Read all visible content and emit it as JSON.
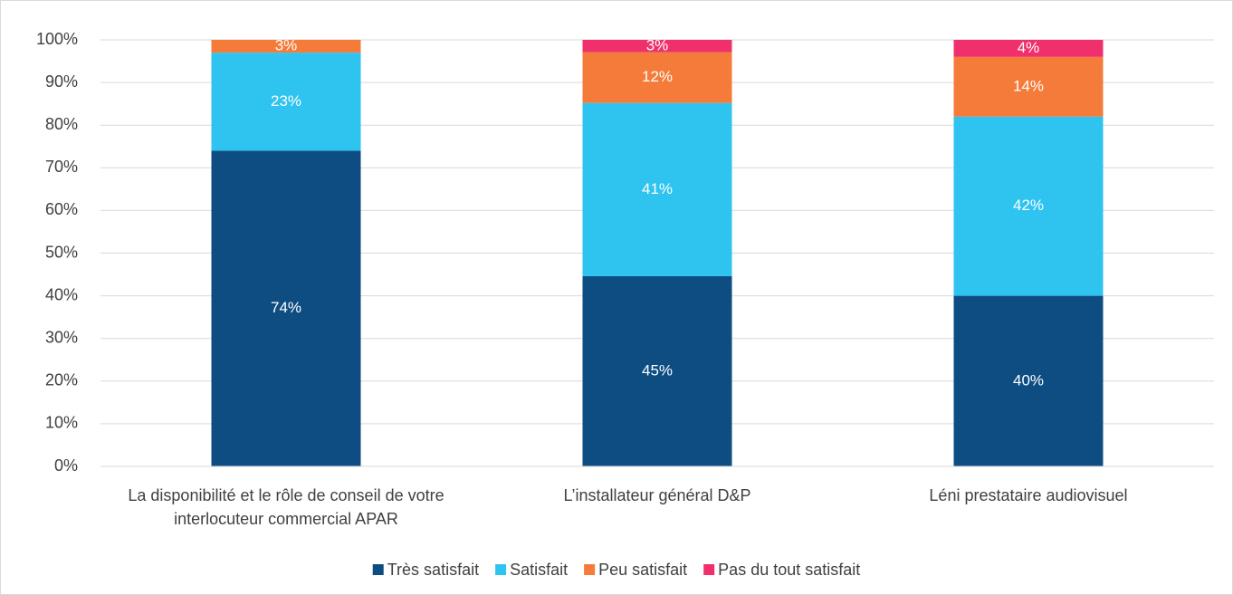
{
  "chart_data": {
    "type": "stacked_bar",
    "categories": [
      "La disponibilité et le rôle de conseil de votre interlocuteur commercial APAR",
      "L’installateur général D&P",
      "Léni prestataire audiovisuel"
    ],
    "series": [
      {
        "name": "Très satisfait",
        "color": "#0e4d82",
        "values": [
          74,
          44.6,
          40
        ],
        "value_labels": [
          "74%",
          "45%",
          "40%"
        ]
      },
      {
        "name": "Satisfait",
        "color": "#2ec4ef",
        "values": [
          23,
          40.6,
          42
        ],
        "value_labels": [
          "23%",
          "41%",
          "42%"
        ]
      },
      {
        "name": "Peu satisfait",
        "color": "#f47b3a",
        "values": [
          3,
          11.9,
          14
        ],
        "value_labels": [
          "3%",
          "12%",
          "14%"
        ]
      },
      {
        "name": "Pas du tout satisfait",
        "color": "#f0306d",
        "values": [
          null,
          2.9,
          4
        ],
        "value_labels": [
          null,
          "3%",
          "4%"
        ]
      }
    ],
    "ylim": [
      0,
      100
    ],
    "yticks": [
      {
        "value": 0,
        "label": "0%"
      },
      {
        "value": 10,
        "label": "10%"
      },
      {
        "value": 20,
        "label": "20%"
      },
      {
        "value": 30,
        "label": "30%"
      },
      {
        "value": 40,
        "label": "40%"
      },
      {
        "value": 50,
        "label": "50%"
      },
      {
        "value": 60,
        "label": "60%"
      },
      {
        "value": 70,
        "label": "70%"
      },
      {
        "value": 80,
        "label": "80%"
      },
      {
        "value": 90,
        "label": "90%"
      },
      {
        "value": 100,
        "label": "100%"
      }
    ],
    "grid": true,
    "legend": "bottom"
  }
}
